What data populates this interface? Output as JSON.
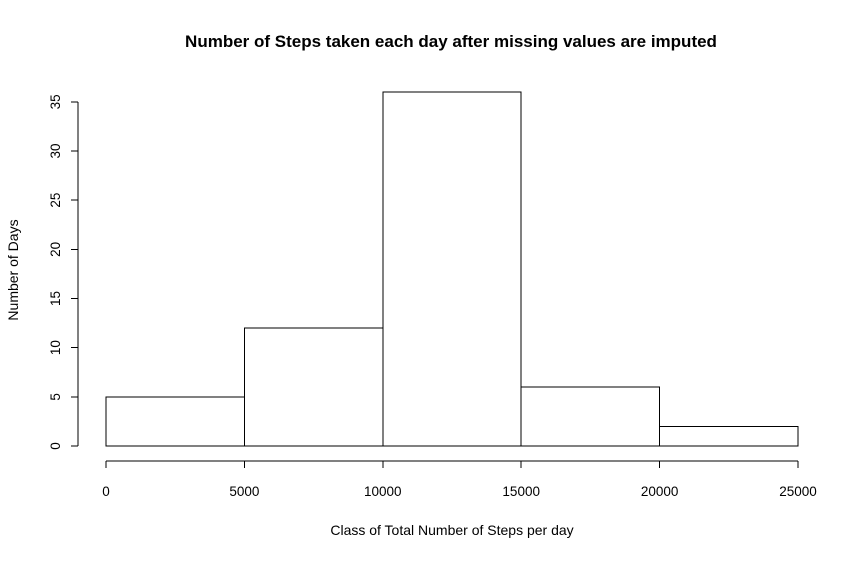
{
  "chart_data": {
    "type": "bar",
    "subtype": "histogram",
    "title": "Number of Steps taken each day after missing values are imputed",
    "xlabel": "Class of Total Number of Steps per day",
    "ylabel": "Number of Days",
    "bins": [
      {
        "from": 0,
        "to": 5000,
        "count": 5
      },
      {
        "from": 5000,
        "to": 10000,
        "count": 12
      },
      {
        "from": 10000,
        "to": 15000,
        "count": 36
      },
      {
        "from": 15000,
        "to": 20000,
        "count": 6
      },
      {
        "from": 20000,
        "to": 25000,
        "count": 2
      }
    ],
    "xlim": [
      0,
      25000
    ],
    "ylim": [
      0,
      36
    ],
    "xticks": [
      "0",
      "5000",
      "10000",
      "15000",
      "20000",
      "25000"
    ],
    "yticks": [
      "0",
      "5",
      "10",
      "15",
      "20",
      "25",
      "30",
      "35"
    ],
    "grid": false,
    "bar_fill": "#ffffff",
    "bar_stroke": "#000000"
  }
}
